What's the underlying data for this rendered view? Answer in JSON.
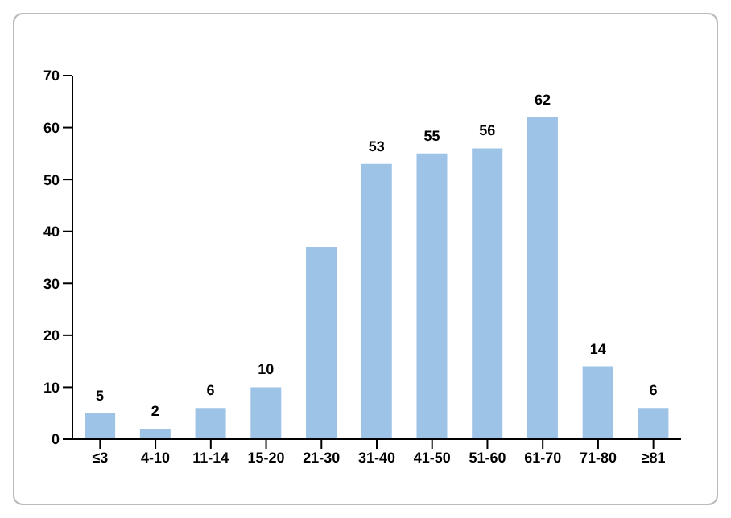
{
  "chart_data": {
    "type": "bar",
    "categories": [
      "≤3",
      "4-10",
      "11-14",
      "15-20",
      "21-30",
      "31-40",
      "41-50",
      "51-60",
      "61-70",
      "71-80",
      "≥81"
    ],
    "values": [
      5,
      2,
      6,
      10,
      37,
      53,
      55,
      56,
      62,
      14,
      6
    ],
    "value_labels": [
      "5",
      "2",
      "6",
      "10",
      null,
      "53",
      "55",
      "56",
      "62",
      "14",
      "6"
    ],
    "color": "#9dc3e6",
    "ylim": [
      0,
      70
    ],
    "yticks": [
      0,
      10,
      20,
      30,
      40,
      50,
      60,
      70
    ],
    "grid": false
  }
}
